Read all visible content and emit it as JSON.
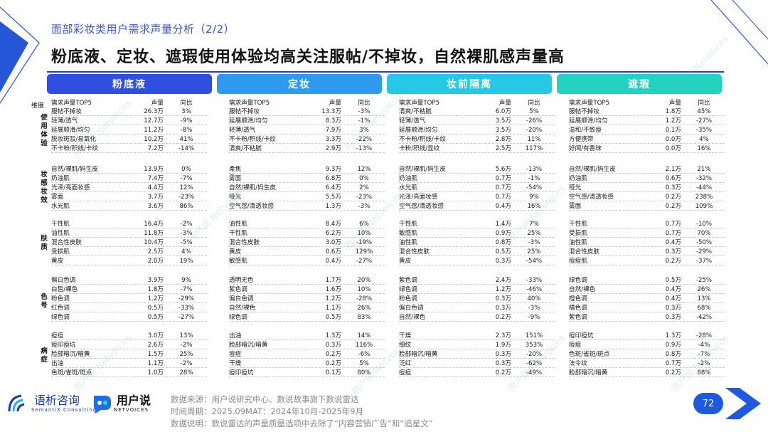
{
  "page": {
    "kicker": "面部彩妆类用户需求声量分析（2/2）",
    "headline": "粉底液、定妆、遮瑕使用体验均高关注服帖/不掉妆，自然裸肌感声量高",
    "page_number": "72"
  },
  "colors": {
    "foundation": "#2f4fe0",
    "setting": "#2f9af0",
    "primer": "#27c8e6",
    "concealer": "#24d2c0",
    "rule": "#1e3fbf"
  },
  "dimension_label": "维度",
  "dimension_groups": [
    {
      "label": "使用体验"
    },
    {
      "label": "妆感妆效"
    },
    {
      "label": "肤质"
    },
    {
      "label": "色号"
    },
    {
      "label": "病症"
    }
  ],
  "columns": [
    {
      "title": "粉底液",
      "head": {
        "name": "需求声量TOP5",
        "volume": "声量",
        "yoy": "同比"
      },
      "groups": [
        [
          [
            "服帖不掉妆",
            "26.3万",
            "3%"
          ],
          [
            "轻薄/透气",
            "12.7万",
            "-9%"
          ],
          [
            "延展顺滑/均匀",
            "11.2万",
            "-8%"
          ],
          [
            "脱妆斑驳/易氧化",
            "10.2万",
            "41%"
          ],
          [
            "不卡粉/积线/卡纹",
            "7.2万",
            "-14%"
          ]
        ],
        [
          [
            "自然/裸肌/妈生皮",
            "13.9万",
            "0%"
          ],
          [
            "奶油肌",
            "7.4万",
            "-7%"
          ],
          [
            "光泽/亮面妆感",
            "4.4万",
            "12%"
          ],
          [
            "雾面",
            "3.7万",
            "-23%"
          ],
          [
            "水光肌",
            "3.6万",
            "86%"
          ]
        ],
        [
          [
            "干性肌",
            "16.4万",
            "-2%"
          ],
          [
            "油性肌",
            "11.8万",
            "-3%"
          ],
          [
            "混合性皮肤",
            "10.4万",
            "-5%"
          ],
          [
            "受损肌",
            "2.5万",
            "4%"
          ],
          [
            "黄皮",
            "2.0万",
            "19%"
          ]
        ],
        [
          [
            "偏白色调",
            "3.9万",
            "9%"
          ],
          [
            "白皙/裸色",
            "1.8万",
            "-7%"
          ],
          [
            "粉色调",
            "1.2万",
            "-29%"
          ],
          [
            "红色调",
            "0.5万",
            "-33%"
          ],
          [
            "绿色调",
            "0.5万",
            "-27%"
          ]
        ],
        [
          [
            "痘痘",
            "3.0万",
            "13%"
          ],
          [
            "痘印痘坑",
            "2.6万",
            "-2%"
          ],
          [
            "脸部暗沉/暗黄",
            "1.5万",
            "25%"
          ],
          [
            "出油",
            "1.1万",
            "-2%"
          ],
          [
            "色斑/雀斑/斑点",
            "1.0万",
            "28%"
          ]
        ]
      ]
    },
    {
      "title": "定妆",
      "head": {
        "name": "需求声量TOP5",
        "volume": "声量",
        "yoy": "同比"
      },
      "groups": [
        [
          [
            "服帖不掉妆",
            "13.3万",
            "-3%"
          ],
          [
            "延展顺滑/均匀",
            "8.3万",
            "-1%"
          ],
          [
            "轻薄/透气",
            "7.9万",
            "3%"
          ],
          [
            "不卡粉/积线/卡纹",
            "3.3万",
            "-22%"
          ],
          [
            "清爽/不粘腻",
            "2.9万",
            "-13%"
          ]
        ],
        [
          [
            "柔焦",
            "9.3万",
            "12%"
          ],
          [
            "雾面",
            "6.8万",
            "0%"
          ],
          [
            "自然/裸肌/妈生皮",
            "6.4万",
            "2%"
          ],
          [
            "哑光",
            "5.5万",
            "-23%"
          ],
          [
            "空气感/清透妆感",
            "1.3万",
            "-3%"
          ]
        ],
        [
          [
            "油性肌",
            "8.4万",
            "6%"
          ],
          [
            "干性肌",
            "6.2万",
            "10%"
          ],
          [
            "混合性皮肤",
            "3.0万",
            "-19%"
          ],
          [
            "黄皮",
            "0.6万",
            "129%"
          ],
          [
            "敏感肌",
            "0.4万",
            "-27%"
          ]
        ],
        [
          [
            "透明无色",
            "1.7万",
            "20%"
          ],
          [
            "紫色调",
            "1.6万",
            "10%"
          ],
          [
            "偏白色调",
            "1.2万",
            "-28%"
          ],
          [
            "自然/裸色",
            "1.1万",
            "26%"
          ],
          [
            "绿色调",
            "0.5万",
            "83%"
          ]
        ],
        [
          [
            "出油",
            "1.3万",
            "14%"
          ],
          [
            "脸部暗沉/暗黄",
            "0.3万",
            "116%"
          ],
          [
            "痘痘",
            "0.2万",
            "-6%"
          ],
          [
            "干燥",
            "0.2万",
            "5%"
          ],
          [
            "痘印痘坑",
            "0.1万",
            "80%"
          ]
        ]
      ]
    },
    {
      "title": "妆前隔离",
      "head": {
        "name": "需求声量TOP5",
        "volume": "声量",
        "yoy": "同比"
      },
      "groups": [
        [
          [
            "清爽/不粘腻",
            "6.0万",
            "5%"
          ],
          [
            "轻薄/透气",
            "3.5万",
            "-26%"
          ],
          [
            "延展顺滑/均匀",
            "3.5万",
            "-20%"
          ],
          [
            "不卡粉/积线/卡纹",
            "2.8万",
            "11%"
          ],
          [
            "卡粉/积线/显纹",
            "2.5万",
            "117%"
          ]
        ],
        [
          [
            "自然/裸肌/妈生皮",
            "5.6万",
            "-13%"
          ],
          [
            "奶油肌",
            "0.7万",
            "-1%"
          ],
          [
            "水光肌",
            "0.7万",
            "-54%"
          ],
          [
            "光泽/亮面妆感",
            "0.7万",
            "9%"
          ],
          [
            "空气感/清透妆感",
            "0.4万",
            "16%"
          ]
        ],
        [
          [
            "干性肌",
            "1.4万",
            "7%"
          ],
          [
            "敏感肌",
            "0.9万",
            "25%"
          ],
          [
            "油性肌",
            "0.8万",
            "-3%"
          ],
          [
            "混合性皮肤",
            "0.5万",
            "25%"
          ],
          [
            "黄皮",
            "0.3万",
            "-54%"
          ]
        ],
        [
          [
            "紫色调",
            "2.4万",
            "-33%"
          ],
          [
            "绿色调",
            "1.2万",
            "-46%"
          ],
          [
            "粉色调",
            "0.3万",
            "40%"
          ],
          [
            "偏白色调",
            "0.3万",
            "-3%"
          ],
          [
            "自然/裸色",
            "0.2万",
            "-9%"
          ]
        ],
        [
          [
            "干燥",
            "2.3万",
            "151%"
          ],
          [
            "细纹",
            "1.9万",
            "353%"
          ],
          [
            "脸部暗沉/暗黄",
            "0.3万",
            "-20%"
          ],
          [
            "泛红",
            "0.3万",
            "-62%"
          ],
          [
            "痘痘",
            "0.2万",
            "-49%"
          ]
        ]
      ]
    },
    {
      "title": "遮瑕",
      "head": {
        "name": "需求声量TOP5",
        "volume": "声量",
        "yoy": "同比"
      },
      "groups": [
        [
          [
            "服帖不掉妆",
            "1.8万",
            "45%"
          ],
          [
            "延展顺滑/均匀",
            "1.2万",
            "-27%"
          ],
          [
            "温和/不致痘",
            "0.1万",
            "-35%"
          ],
          [
            "方便携带",
            "0.0万",
            "4%"
          ],
          [
            "好闻/有香味",
            "0.0万",
            "16%"
          ]
        ],
        [
          [
            "自然/裸肌/妈生皮",
            "2.1万",
            "21%"
          ],
          [
            "奶油肌",
            "0.6万",
            "-32%"
          ],
          [
            "哑光",
            "0.3万",
            "-44%"
          ],
          [
            "空气感/清透妆感",
            "0.2万",
            "238%"
          ],
          [
            "雾面",
            "0.2万",
            "109%"
          ]
        ],
        [
          [
            "干性肌",
            "0.7万",
            "-10%"
          ],
          [
            "受损肌",
            "0.7万",
            "70%"
          ],
          [
            "油性肌",
            "0.4万",
            "-50%"
          ],
          [
            "混合性皮肤",
            "0.3万",
            "-29%"
          ],
          [
            "痘痘肌",
            "0.2万",
            "-37%"
          ]
        ],
        [
          [
            "绿色调",
            "0.5万",
            "-25%"
          ],
          [
            "自然/裸色",
            "0.4万",
            "26%"
          ],
          [
            "橙色调",
            "0.4万",
            "13%"
          ],
          [
            "橘色调",
            "0.3万",
            "68%"
          ],
          [
            "紫色调",
            "0.3万",
            "-42%"
          ]
        ],
        [
          [
            "痘印痘坑",
            "1.3万",
            "-28%"
          ],
          [
            "痘痘",
            "0.9万",
            "-4%"
          ],
          [
            "色斑/雀斑/斑点",
            "0.8万",
            "-7%"
          ],
          [
            "法令纹",
            "0.7万",
            "-2%"
          ],
          [
            "脸部暗沉/暗黄",
            "0.2万",
            "88%"
          ]
        ]
      ]
    }
  ],
  "footer": {
    "logo1_name": "语析咨询",
    "logo1_sub": "SemantiX Consulting",
    "logo2_name": "用户说",
    "logo2_sub": "NETVOICES",
    "source_line1": "数据来源：用户说研究中心、数说故事旗下数说雷达",
    "source_line2": "时间周期：2025.09MAT：2024年10月-2025年9月",
    "source_line3": "数据说明：数说雷达的声量质量选项中去除了“内容营销广告”和“追星文”"
  },
  "watermark": {
    "text": "用户说 Netvoices"
  }
}
